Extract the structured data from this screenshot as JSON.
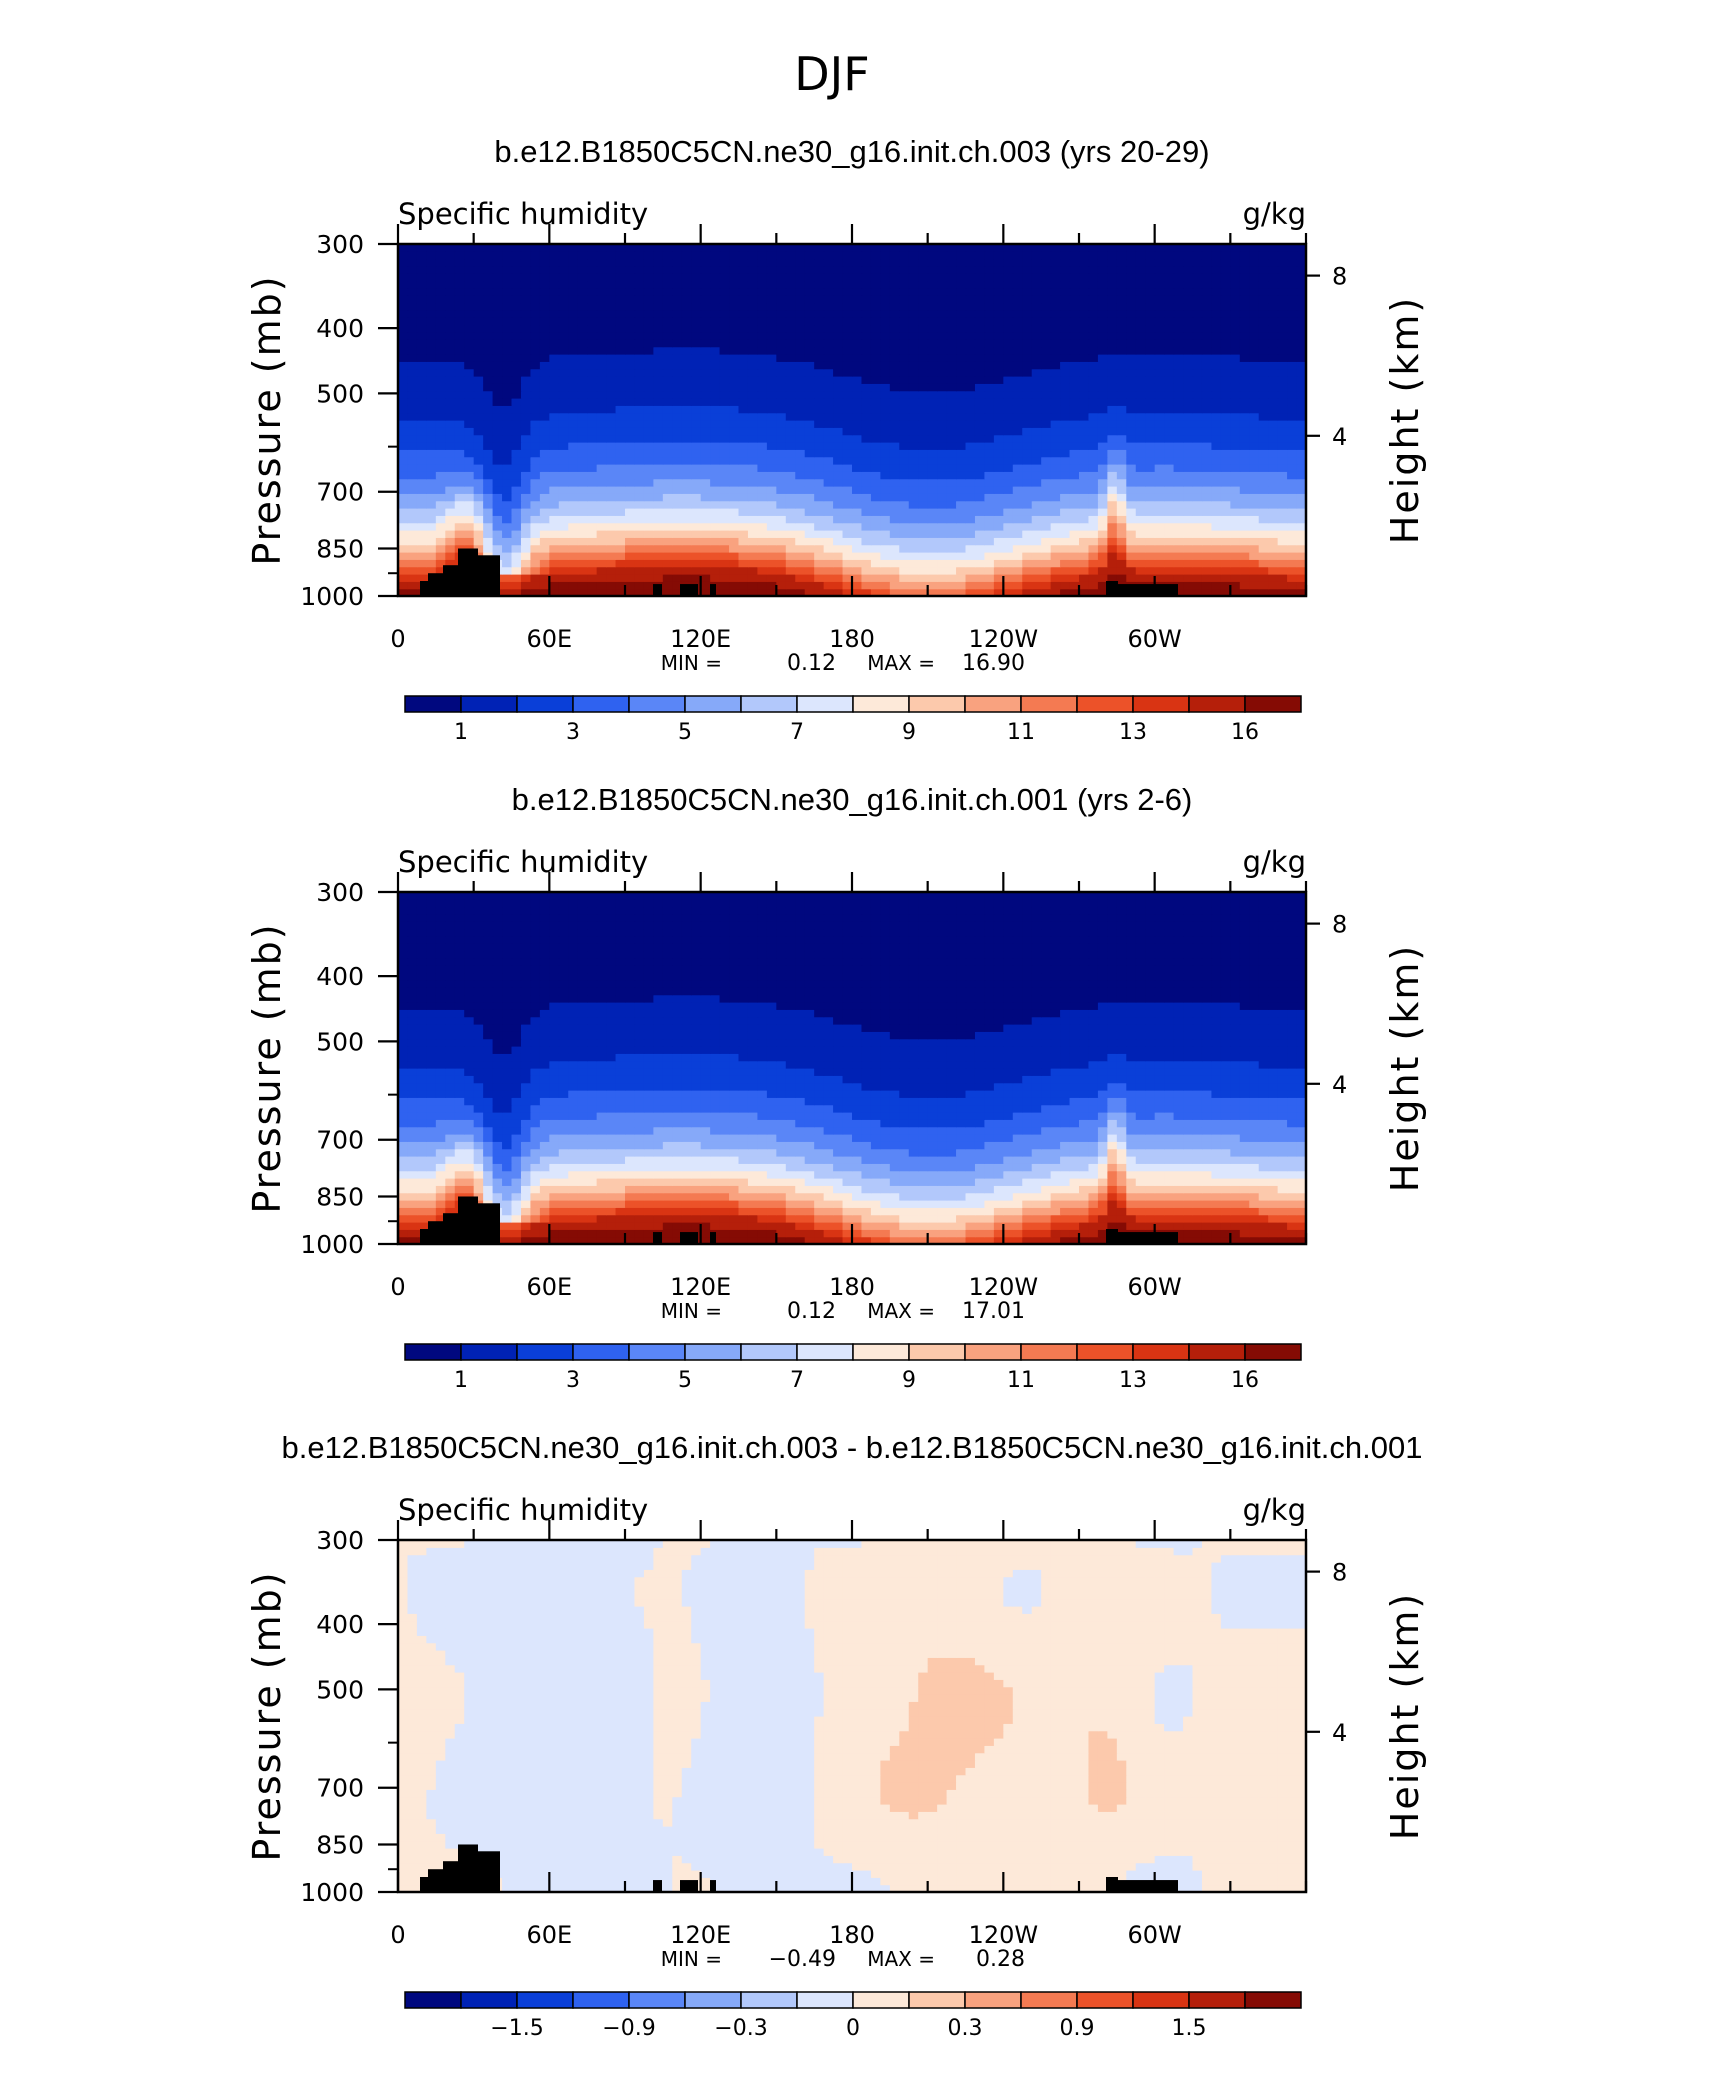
{
  "figure": {
    "title": "DJF"
  },
  "chart_data": [
    {
      "type": "heatmap",
      "title": "b.e12.B1850C5CN.ne30_g16.init.ch.003 (yrs 20-29)",
      "left_label": "Specific humidity",
      "right_label": "g/kg",
      "ylabel": "Pressure (mb)",
      "ylabel_right": "Height (km)",
      "x_tick_labels": [
        "0",
        "60E",
        "120E",
        "180",
        "120W",
        "60W"
      ],
      "y_tick_labels": [
        "300",
        "400",
        "500",
        "700",
        "850",
        "1000"
      ],
      "y_right_tick_labels": [
        "8",
        "4"
      ],
      "ylim": [
        1000,
        300
      ],
      "stats": {
        "min_label": "MIN =",
        "min": "0.12",
        "max_label": "MAX =",
        "max": "16.90"
      },
      "colorbar": {
        "colors": [
          "#00087f",
          "#0022b5",
          "#0a3fd8",
          "#2f62f0",
          "#5a86f7",
          "#86a9f9",
          "#b2c8fb",
          "#dce6fd",
          "#fde9d9",
          "#fcc9ac",
          "#f9a27f",
          "#f47a52",
          "#ec5229",
          "#d93413",
          "#b51f0a",
          "#850b04"
        ],
        "labels": [
          "1",
          "3",
          "5",
          "7",
          "9",
          "11",
          "13",
          "16"
        ]
      },
      "levels": [
        1,
        2,
        3,
        4,
        5,
        6,
        7,
        8,
        9,
        10,
        11,
        12,
        13,
        14,
        16
      ],
      "field": "mean"
    },
    {
      "type": "heatmap",
      "title": "b.e12.B1850C5CN.ne30_g16.init.ch.001 (yrs 2-6)",
      "left_label": "Specific humidity",
      "right_label": "g/kg",
      "ylabel": "Pressure (mb)",
      "ylabel_right": "Height (km)",
      "x_tick_labels": [
        "0",
        "60E",
        "120E",
        "180",
        "120W",
        "60W"
      ],
      "y_tick_labels": [
        "300",
        "400",
        "500",
        "700",
        "850",
        "1000"
      ],
      "y_right_tick_labels": [
        "8",
        "4"
      ],
      "ylim": [
        1000,
        300
      ],
      "stats": {
        "min_label": "MIN =",
        "min": "0.12",
        "max_label": "MAX =",
        "max": "17.01"
      },
      "colorbar": {
        "colors": [
          "#00087f",
          "#0022b5",
          "#0a3fd8",
          "#2f62f0",
          "#5a86f7",
          "#86a9f9",
          "#b2c8fb",
          "#dce6fd",
          "#fde9d9",
          "#fcc9ac",
          "#f9a27f",
          "#f47a52",
          "#ec5229",
          "#d93413",
          "#b51f0a",
          "#850b04"
        ],
        "labels": [
          "1",
          "3",
          "5",
          "7",
          "9",
          "11",
          "13",
          "16"
        ]
      },
      "levels": [
        1,
        2,
        3,
        4,
        5,
        6,
        7,
        8,
        9,
        10,
        11,
        12,
        13,
        14,
        16
      ],
      "field": "mean"
    },
    {
      "type": "heatmap",
      "title": "b.e12.B1850C5CN.ne30_g16.init.ch.003 - b.e12.B1850C5CN.ne30_g16.init.ch.001",
      "left_label": "Specific humidity",
      "right_label": "g/kg",
      "ylabel": "Pressure (mb)",
      "ylabel_right": "Height (km)",
      "x_tick_labels": [
        "0",
        "60E",
        "120E",
        "180",
        "120W",
        "60W"
      ],
      "y_tick_labels": [
        "300",
        "400",
        "500",
        "700",
        "850",
        "1000"
      ],
      "y_right_tick_labels": [
        "8",
        "4"
      ],
      "ylim": [
        1000,
        300
      ],
      "stats": {
        "min_label": "MIN =",
        "min": "−0.49",
        "max_label": "MAX =",
        "max": "0.28"
      },
      "colorbar": {
        "colors": [
          "#00087f",
          "#0022b5",
          "#0a3fd8",
          "#2f62f0",
          "#5a86f7",
          "#86a9f9",
          "#b2c8fb",
          "#dce6fd",
          "#fde9d9",
          "#fcc9ac",
          "#f9a27f",
          "#f47a52",
          "#ec5229",
          "#d93413",
          "#b51f0a",
          "#850b04"
        ],
        "labels": [
          "−1.5",
          "−0.9",
          "−0.3",
          "0",
          "0.3",
          "0.9",
          "1.5"
        ]
      },
      "levels": [
        -2.1,
        -1.8,
        -1.5,
        -1.2,
        -0.9,
        -0.6,
        -0.3,
        0,
        0.15,
        0.3,
        0.6,
        0.9,
        1.2,
        1.5,
        1.8
      ],
      "field": "diff"
    }
  ]
}
